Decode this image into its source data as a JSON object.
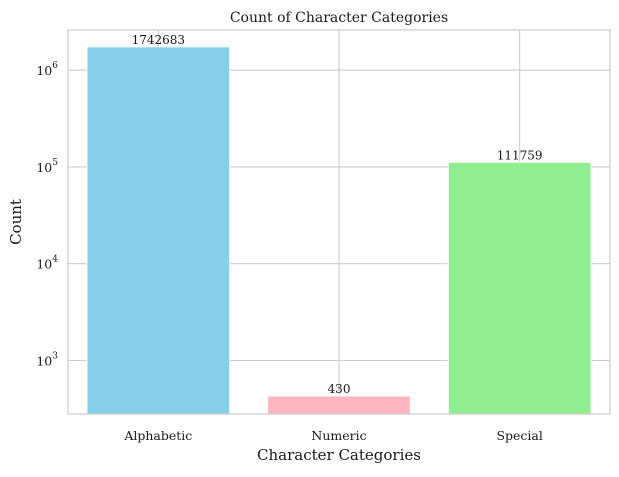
{
  "chart_data": {
    "type": "bar",
    "title": "Count of Character Categories",
    "xlabel": "Character Categories",
    "ylabel": "Count",
    "categories": [
      "Alphabetic",
      "Numeric",
      "Special"
    ],
    "values": [
      1742683,
      430,
      111759
    ],
    "data_labels": [
      "1742683",
      "430",
      "111759"
    ],
    "colors": [
      "#87ceeb",
      "#ffb6c1",
      "#90ee90"
    ],
    "yscale": "log",
    "ylim": [
      280,
      2600000
    ],
    "yticks": [
      {
        "value": 1000,
        "base": "10",
        "exp": "3"
      },
      {
        "value": 10000,
        "base": "10",
        "exp": "4"
      },
      {
        "value": 100000,
        "base": "10",
        "exp": "5"
      },
      {
        "value": 1000000,
        "base": "10",
        "exp": "6"
      }
    ],
    "grid": true,
    "grid_color": "#cccccc",
    "background": "#ffffff"
  }
}
